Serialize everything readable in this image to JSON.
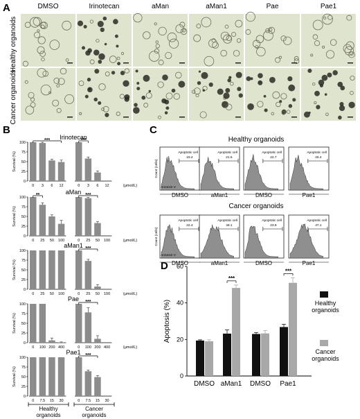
{
  "panel_a": {
    "letter": "A",
    "columns": [
      "DMSO",
      "Irinotecan",
      "aMan",
      "aMan1",
      "Pae",
      "Pae1"
    ],
    "rows": [
      "Healthy organoids",
      "Cancer organoids"
    ],
    "colors": {
      "image_bg": "#dfe4cf",
      "organoid": "#2a2a22"
    }
  },
  "panel_b": {
    "letter": "B",
    "ylabel": "Survival (%)",
    "unit": "(μmol/L)",
    "group_labels": [
      [
        "Healthy",
        "organoids"
      ],
      [
        "Cancer",
        "organoids"
      ]
    ],
    "sig": "***",
    "sig_small": "**"
  },
  "panel_c": {
    "letter": "C",
    "healthy_title": "Healthy organoids",
    "cancer_title": "Cancer organoids",
    "ylabel": "Count (cells)",
    "xlabel": "Annexin V",
    "gate_label": "Apoptotic cell",
    "hist_labels": [
      "DMSO",
      "aMan1",
      "DMSO",
      "Pae1"
    ],
    "healthy_values": [
      "19.4",
      "21.5",
      "22.7",
      "26.4"
    ],
    "cancer_values": [
      "22.4",
      "49.1",
      "23.8",
      "47.1"
    ]
  },
  "panel_d": {
    "letter": "D",
    "ylabel": "Apoptosis (%)",
    "legend": [
      [
        "Healthy",
        "organoids"
      ],
      [
        "Cancer",
        "organoids"
      ]
    ],
    "sig": "***"
  },
  "chart_data": [
    {
      "type": "bar",
      "title": "Irinotecan",
      "ylabel": "Survival (%)",
      "ylim": [
        0,
        100
      ],
      "yticks": [
        0,
        25,
        50,
        75,
        100
      ],
      "categories": [
        "0",
        "3",
        "6",
        "12",
        "0",
        "3",
        "6",
        "12"
      ],
      "values": [
        100,
        98,
        53,
        49,
        100,
        58,
        22,
        0
      ],
      "errors": [
        0,
        2,
        3,
        5,
        0,
        4,
        4,
        0
      ],
      "groups": [
        "Healthy",
        "Healthy",
        "Healthy",
        "Healthy",
        "Cancer",
        "Cancer",
        "Cancer",
        "Cancer"
      ],
      "sig": [
        "***",
        "***"
      ]
    },
    {
      "type": "bar",
      "title": "aMan",
      "ylabel": "Survival (%)",
      "ylim": [
        0,
        100
      ],
      "yticks": [
        0,
        25,
        50,
        75,
        100
      ],
      "categories": [
        "0",
        "25",
        "50",
        "100",
        "0",
        "25",
        "50",
        "100"
      ],
      "values": [
        100,
        80,
        50,
        31,
        100,
        97,
        33,
        0
      ],
      "errors": [
        0,
        5,
        4,
        9,
        0,
        2,
        4,
        0
      ],
      "sig": [
        "**",
        "***"
      ]
    },
    {
      "type": "bar",
      "title": "aMan1",
      "ylabel": "Survival (%)",
      "ylim": [
        0,
        100
      ],
      "yticks": [
        0,
        25,
        50,
        75,
        100
      ],
      "categories": [
        "0",
        "25",
        "50",
        "100",
        "0",
        "25",
        "50",
        "100"
      ],
      "values": [
        100,
        100,
        100,
        100,
        100,
        73,
        7,
        0
      ],
      "errors": [
        0,
        0,
        0,
        0,
        0,
        4,
        5,
        0
      ],
      "sig": [
        "",
        "***"
      ]
    },
    {
      "type": "bar",
      "title": "Pae",
      "ylabel": "Survival (%)",
      "ylim": [
        0,
        100
      ],
      "yticks": [
        0,
        25,
        50,
        75,
        100
      ],
      "categories": [
        "0",
        "100",
        "200",
        "400",
        "0",
        "100",
        "200",
        "400"
      ],
      "values": [
        100,
        100,
        6,
        1,
        100,
        78,
        10,
        0
      ],
      "errors": [
        0,
        0,
        6,
        1,
        0,
        12,
        8,
        0
      ],
      "sig": [
        "",
        "***"
      ]
    },
    {
      "type": "bar",
      "title": "Pae1",
      "ylabel": "Survival (%)",
      "ylim": [
        0,
        100
      ],
      "yticks": [
        0,
        25,
        50,
        75,
        100
      ],
      "categories": [
        "0",
        "7.5",
        "15",
        "30",
        "0",
        "7.5",
        "15",
        "30"
      ],
      "values": [
        100,
        100,
        100,
        100,
        100,
        64,
        49,
        0
      ],
      "errors": [
        0,
        0,
        0,
        0,
        0,
        3,
        4,
        0
      ],
      "sig": [
        "",
        "***"
      ]
    },
    {
      "type": "bar",
      "ylabel": "Apoptosis (%)",
      "ylim": [
        0,
        60
      ],
      "yticks": [
        0,
        20,
        40,
        60
      ],
      "categories": [
        "DMSO",
        "aMan1",
        "DMSO",
        "Pae1"
      ],
      "series": [
        {
          "name": "Healthy organoids",
          "values": [
            19.4,
            23.2,
            23.0,
            26.8
          ],
          "errors": [
            0.4,
            2.0,
            0.8,
            1.5
          ],
          "color": "#111111"
        },
        {
          "name": "Cancer organoids",
          "values": [
            19.0,
            48.2,
            23.3,
            51.0
          ],
          "errors": [
            0.8,
            1.6,
            1.5,
            2.8
          ],
          "color": "#a8a8a8"
        }
      ],
      "sig": [
        "",
        "***",
        "",
        "***"
      ]
    }
  ]
}
